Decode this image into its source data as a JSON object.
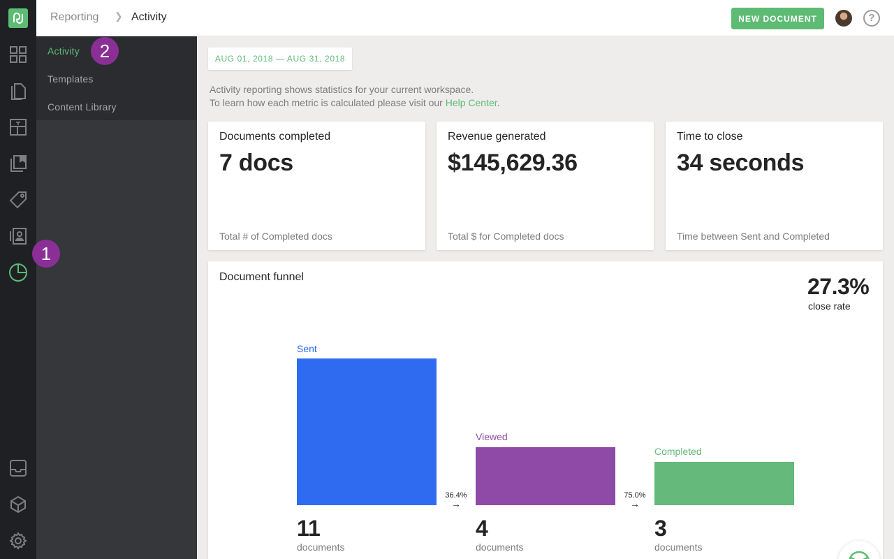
{
  "topbar": {
    "breadcrumb_parent": "Reporting",
    "breadcrumb_separator": "❯",
    "breadcrumb_current": "Activity",
    "new_document_label": "NEW DOCUMENT",
    "help_icon": "?"
  },
  "subnav": {
    "items": [
      {
        "label": "Activity",
        "active": true
      },
      {
        "label": "Templates",
        "active": false
      },
      {
        "label": "Content Library",
        "active": false
      }
    ]
  },
  "rail": {
    "icons": [
      "logo-icon",
      "dashboard-icon",
      "documents-icon",
      "templates-icon",
      "content-library-icon",
      "catalog-icon",
      "contacts-icon",
      "reports-icon",
      "inbox-icon",
      "integrations-icon",
      "settings-icon"
    ]
  },
  "annotations": {
    "badge_1": "1",
    "badge_2": "2"
  },
  "date_range": "AUG 01, 2018 — AUG 31, 2018",
  "intro": {
    "line1": "Activity reporting shows statistics for your current workspace.",
    "line2_prefix": "To learn how each metric is calculated please visit our ",
    "link": "Help Center",
    "line2_suffix": "."
  },
  "cards": [
    {
      "label": "Documents completed",
      "value": "7 docs",
      "foot": "Total # of Completed docs"
    },
    {
      "label": "Revenue generated",
      "value": "$145,629.36",
      "foot": "Total $ for Completed docs"
    },
    {
      "label": "Time to close",
      "value": "34 seconds",
      "foot": "Time between Sent and Completed"
    }
  ],
  "funnel": {
    "title": "Document funnel",
    "close_rate": "27.3%",
    "close_rate_label": "close rate",
    "stages": [
      {
        "label": "Sent",
        "count": "11",
        "unit": "documents",
        "color": "#2f6bf0"
      },
      {
        "label": "Viewed",
        "count": "4",
        "unit": "documents",
        "color": "#8e4aa6"
      },
      {
        "label": "Completed",
        "count": "3",
        "unit": "documents",
        "color": "#65b97a"
      }
    ],
    "conversions": [
      "36.4%",
      "75.0%"
    ],
    "arrow": "→"
  },
  "colors": {
    "accent": "#5dbb74",
    "badge": "#8b2f97",
    "rail": "#1f2023"
  }
}
